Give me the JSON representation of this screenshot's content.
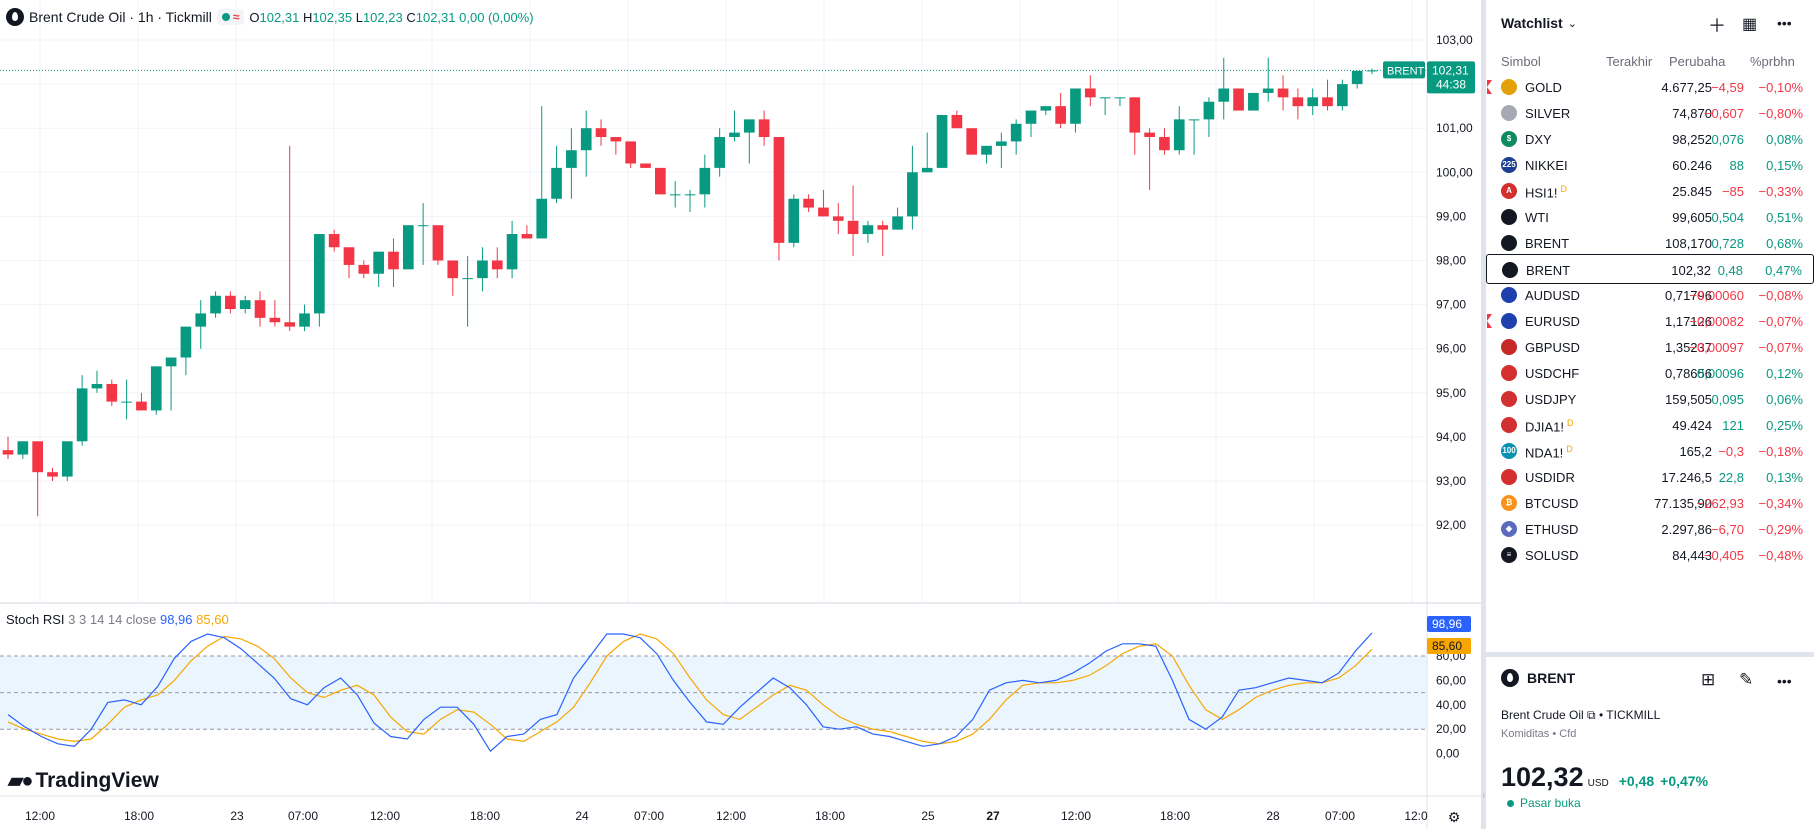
{
  "legend": {
    "title": "Brent Crude Oil · 1h · Tickmill",
    "open_label": "O",
    "open": "102,31",
    "high_label": "H",
    "high": "102,35",
    "low_label": "L",
    "low": "102,23",
    "close_label": "C",
    "close": "102,31",
    "change": "0,00 (0,00%)"
  },
  "price_tag": {
    "symbol": "BRENT",
    "price": "102,31",
    "countdown": "44:38"
  },
  "rsi": {
    "name": "Stoch RSI",
    "params": "3 3 14 14 close",
    "k_value": "98,96",
    "d_value": "85,60",
    "k_color": "#2962ff",
    "d_color": "#f7a600"
  },
  "logo_text": "TradingView",
  "chart_data": {
    "type": "candlestick",
    "price_axis_ticks": [
      "103,00",
      "101,00",
      "100,00",
      "99,00",
      "98,00",
      "97,00",
      "96,00",
      "95,00",
      "94,00",
      "93,00",
      "92,00"
    ],
    "rsi_axis_ticks": [
      "80,00",
      "60,00",
      "40,00",
      "20,00",
      "0,00"
    ],
    "time_axis_ticks": [
      "12:00",
      "18:00",
      "23",
      "07:00",
      "12:00",
      "18:00",
      "24",
      "07:00",
      "12:00",
      "18:00",
      "25",
      "27",
      "12:00",
      "18:00",
      "28",
      "07:00",
      "12:0"
    ],
    "up_color": "#089981",
    "down_color": "#f23645",
    "ohlc": [
      [
        93.7,
        94.0,
        93.5,
        93.6
      ],
      [
        93.6,
        93.9,
        93.5,
        93.9
      ],
      [
        93.9,
        93.9,
        92.2,
        93.2
      ],
      [
        93.2,
        93.3,
        93.0,
        93.1
      ],
      [
        93.1,
        93.9,
        93.0,
        93.9
      ],
      [
        93.9,
        95.4,
        93.8,
        95.1
      ],
      [
        95.1,
        95.5,
        95.0,
        95.2
      ],
      [
        95.2,
        95.3,
        94.7,
        94.8
      ],
      [
        94.8,
        95.3,
        94.4,
        94.8
      ],
      [
        94.8,
        95.0,
        94.6,
        94.6
      ],
      [
        94.6,
        95.6,
        94.5,
        95.6
      ],
      [
        95.6,
        95.8,
        94.6,
        95.8
      ],
      [
        95.8,
        96.5,
        95.4,
        96.5
      ],
      [
        96.5,
        97.1,
        96.0,
        96.8
      ],
      [
        96.8,
        97.3,
        96.7,
        97.2
      ],
      [
        97.2,
        97.3,
        96.8,
        96.9
      ],
      [
        96.9,
        97.2,
        96.8,
        97.1
      ],
      [
        97.1,
        97.3,
        96.5,
        96.7
      ],
      [
        96.7,
        97.1,
        96.5,
        96.6
      ],
      [
        96.6,
        100.6,
        96.4,
        96.5
      ],
      [
        96.5,
        97.0,
        96.4,
        96.8
      ],
      [
        96.8,
        98.6,
        96.5,
        98.6
      ],
      [
        98.6,
        98.7,
        98.2,
        98.3
      ],
      [
        98.3,
        98.3,
        97.6,
        97.9
      ],
      [
        97.9,
        98.0,
        97.6,
        97.7
      ],
      [
        97.7,
        98.2,
        97.4,
        98.2
      ],
      [
        98.2,
        98.5,
        97.4,
        97.8
      ],
      [
        97.8,
        98.8,
        97.8,
        98.8
      ],
      [
        98.8,
        99.3,
        97.9,
        98.8
      ],
      [
        98.8,
        98.8,
        97.9,
        98.0
      ],
      [
        98.0,
        98.0,
        97.2,
        97.6
      ],
      [
        97.6,
        98.1,
        96.5,
        97.6
      ],
      [
        97.6,
        98.3,
        97.3,
        98.0
      ],
      [
        98.0,
        98.3,
        97.6,
        97.8
      ],
      [
        97.8,
        98.9,
        97.6,
        98.6
      ],
      [
        98.6,
        98.8,
        98.5,
        98.5
      ],
      [
        98.5,
        101.5,
        98.5,
        99.4
      ],
      [
        99.4,
        100.6,
        99.3,
        100.1
      ],
      [
        100.1,
        101.0,
        99.4,
        100.5
      ],
      [
        100.5,
        101.4,
        99.9,
        101.0
      ],
      [
        101.0,
        101.2,
        100.6,
        100.8
      ],
      [
        100.8,
        100.8,
        100.4,
        100.7
      ],
      [
        100.7,
        100.7,
        100.1,
        100.2
      ],
      [
        100.2,
        100.2,
        100.1,
        100.1
      ],
      [
        100.1,
        100.1,
        99.5,
        99.5
      ],
      [
        99.5,
        99.8,
        99.2,
        99.5
      ],
      [
        99.5,
        99.6,
        99.1,
        99.5
      ],
      [
        99.5,
        100.4,
        99.2,
        100.1
      ],
      [
        100.1,
        101.0,
        99.9,
        100.8
      ],
      [
        100.8,
        101.4,
        100.7,
        100.9
      ],
      [
        100.9,
        101.2,
        100.2,
        101.2
      ],
      [
        101.2,
        101.4,
        100.6,
        100.8
      ],
      [
        100.8,
        100.8,
        98.0,
        98.4
      ],
      [
        98.4,
        99.5,
        98.3,
        99.4
      ],
      [
        99.4,
        99.5,
        99.1,
        99.2
      ],
      [
        99.2,
        99.6,
        99.0,
        99.0
      ],
      [
        99.0,
        99.3,
        98.6,
        98.9
      ],
      [
        98.9,
        99.7,
        98.1,
        98.6
      ],
      [
        98.6,
        98.9,
        98.4,
        98.8
      ],
      [
        98.8,
        98.9,
        98.1,
        98.7
      ],
      [
        98.7,
        99.2,
        98.7,
        99.0
      ],
      [
        99.0,
        100.6,
        98.7,
        100.0
      ],
      [
        100.0,
        100.9,
        100.0,
        100.1
      ],
      [
        100.1,
        101.2,
        100.1,
        101.3
      ],
      [
        101.3,
        101.4,
        101.0,
        101.0
      ],
      [
        101.0,
        101.0,
        100.5,
        100.4
      ],
      [
        100.4,
        100.6,
        100.2,
        100.6
      ],
      [
        100.6,
        100.9,
        100.1,
        100.7
      ],
      [
        100.7,
        101.2,
        100.4,
        101.1
      ],
      [
        101.1,
        101.3,
        100.8,
        101.4
      ],
      [
        101.4,
        101.5,
        101.3,
        101.5
      ],
      [
        101.5,
        101.8,
        101.0,
        101.1
      ],
      [
        101.1,
        101.9,
        100.9,
        101.9
      ],
      [
        101.9,
        102.2,
        101.5,
        101.7
      ],
      [
        101.7,
        101.7,
        101.3,
        101.7
      ],
      [
        101.7,
        101.7,
        101.5,
        101.7
      ],
      [
        101.7,
        101.7,
        100.4,
        100.9
      ],
      [
        100.9,
        101.0,
        99.6,
        100.8
      ],
      [
        100.8,
        101.0,
        100.4,
        100.5
      ],
      [
        100.5,
        101.5,
        100.4,
        101.2
      ],
      [
        101.2,
        101.2,
        100.4,
        101.2
      ],
      [
        101.2,
        101.7,
        100.8,
        101.6
      ],
      [
        101.6,
        102.6,
        101.2,
        101.9
      ],
      [
        101.9,
        101.9,
        101.4,
        101.4
      ],
      [
        101.4,
        101.8,
        101.4,
        101.8
      ],
      [
        101.8,
        102.6,
        101.6,
        101.9
      ],
      [
        101.9,
        102.2,
        101.4,
        101.7
      ],
      [
        101.7,
        101.9,
        101.2,
        101.5
      ],
      [
        101.5,
        101.9,
        101.3,
        101.7
      ],
      [
        101.7,
        102.1,
        101.4,
        101.5
      ],
      [
        101.5,
        102.1,
        101.4,
        102.0
      ],
      [
        102.0,
        102.3,
        101.9,
        102.3
      ],
      [
        102.31,
        102.35,
        102.23,
        102.31
      ]
    ],
    "stoch_k": [
      32,
      22,
      14,
      8,
      6,
      20,
      42,
      44,
      40,
      55,
      78,
      92,
      98,
      95,
      86,
      74,
      62,
      45,
      40,
      54,
      62,
      48,
      25,
      14,
      12,
      28,
      38,
      38,
      24,
      2,
      14,
      16,
      28,
      32,
      62,
      80,
      98,
      98,
      95,
      82,
      60,
      42,
      26,
      24,
      38,
      50,
      62,
      54,
      40,
      22,
      20,
      22,
      16,
      14,
      10,
      6,
      8,
      14,
      28,
      52,
      58,
      60,
      58,
      60,
      66,
      74,
      84,
      90,
      90,
      88,
      60,
      28,
      20,
      30,
      52,
      54,
      58,
      62,
      60,
      58,
      66,
      84,
      98.96
    ],
    "stoch_d": [
      26,
      20,
      16,
      12,
      10,
      12,
      24,
      38,
      44,
      48,
      60,
      76,
      88,
      96,
      94,
      88,
      78,
      62,
      50,
      46,
      52,
      56,
      48,
      30,
      18,
      16,
      28,
      36,
      34,
      24,
      12,
      10,
      18,
      26,
      38,
      58,
      80,
      92,
      98,
      94,
      82,
      62,
      44,
      32,
      28,
      38,
      48,
      56,
      52,
      40,
      30,
      24,
      20,
      18,
      14,
      10,
      8,
      10,
      16,
      28,
      44,
      56,
      58,
      58,
      60,
      64,
      72,
      82,
      88,
      90,
      80,
      56,
      36,
      28,
      36,
      46,
      52,
      56,
      58,
      58,
      62,
      72,
      85.6
    ]
  },
  "watchlist": {
    "title": "Watchlist",
    "columns": {
      "symbol": "Simbol",
      "last": "Terakhir",
      "change": "Perubaha",
      "pct": "%prbhn"
    },
    "items": [
      {
        "symbol": "GOLD",
        "last": "4.677,25",
        "change": "−4,59",
        "pct": "−0,10%",
        "dir": "dn",
        "icon": "gold-bar-icon",
        "icon_color": "#e3a008",
        "flag": true
      },
      {
        "symbol": "SILVER",
        "last": "74,870",
        "change": "−0,607",
        "pct": "−0,80%",
        "dir": "dn",
        "icon": "silver-bar-icon",
        "icon_color": "#a6a9b4"
      },
      {
        "symbol": "DXY",
        "last": "98,252",
        "change": "0,076",
        "pct": "0,08%",
        "dir": "up",
        "icon": "dollar-icon",
        "icon_color": "#0e8a63",
        "glyph": "$"
      },
      {
        "symbol": "NIKKEI",
        "last": "60.246",
        "change": "88",
        "pct": "0,15%",
        "dir": "up",
        "icon": "nikkei-icon",
        "icon_color": "#1d3f8f",
        "glyph": "225"
      },
      {
        "symbol": "HSI1!",
        "sup": "D",
        "last": "25.845",
        "change": "−85",
        "pct": "−0,33%",
        "dir": "dn",
        "icon": "hsi-icon",
        "icon_color": "#d32f2f",
        "glyph": "A"
      },
      {
        "symbol": "WTI",
        "last": "99,605",
        "change": "0,504",
        "pct": "0,51%",
        "dir": "up",
        "icon": "oil-drop-icon",
        "icon_color": "#131722"
      },
      {
        "symbol": "BRENT",
        "last": "108,170",
        "change": "0,728",
        "pct": "0,68%",
        "dir": "up",
        "icon": "oil-drop-icon",
        "icon_color": "#131722"
      },
      {
        "symbol": "BRENT",
        "last": "102,32",
        "change": "0,48",
        "pct": "0,47%",
        "dir": "up",
        "icon": "oil-drop-icon",
        "icon_color": "#131722",
        "active": true
      },
      {
        "symbol": "AUDUSD",
        "last": "0,71796",
        "change": "−0,00060",
        "pct": "−0,08%",
        "dir": "dn",
        "icon": "aud-flag-icon",
        "icon_color": "#1e40af"
      },
      {
        "symbol": "EURUSD",
        "last": "1,17126",
        "change": "−0,00082",
        "pct": "−0,07%",
        "dir": "dn",
        "icon": "eur-flag-icon",
        "icon_color": "#1e40af",
        "flag": true
      },
      {
        "symbol": "GBPUSD",
        "last": "1,35237",
        "change": "−0,00097",
        "pct": "−0,07%",
        "dir": "dn",
        "icon": "gbp-flag-icon",
        "icon_color": "#c62828"
      },
      {
        "symbol": "USDCHF",
        "last": "0,78656",
        "change": "0,00096",
        "pct": "0,12%",
        "dir": "up",
        "icon": "usd-flag-icon",
        "icon_color": "#d32f2f"
      },
      {
        "symbol": "USDJPY",
        "last": "159,505",
        "change": "0,095",
        "pct": "0,06%",
        "dir": "up",
        "icon": "usd-flag-icon",
        "icon_color": "#d32f2f"
      },
      {
        "symbol": "DJIA1!",
        "sup": "D",
        "last": "49.424",
        "change": "121",
        "pct": "0,25%",
        "dir": "up",
        "icon": "usa-flag-icon",
        "icon_color": "#d32f2f"
      },
      {
        "symbol": "NDA1!",
        "sup": "D",
        "last": "165,2",
        "change": "−0,3",
        "pct": "−0,18%",
        "dir": "dn",
        "icon": "nasdaq-icon",
        "icon_color": "#0891b2",
        "glyph": "100"
      },
      {
        "symbol": "USDIDR",
        "last": "17.246,5",
        "change": "22,8",
        "pct": "0,13%",
        "dir": "up",
        "icon": "usd-flag-icon",
        "icon_color": "#d32f2f"
      },
      {
        "symbol": "BTCUSD",
        "last": "77.135,90",
        "change": "−262,93",
        "pct": "−0,34%",
        "dir": "dn",
        "icon": "bitcoin-icon",
        "icon_color": "#f7931a",
        "glyph": "₿"
      },
      {
        "symbol": "ETHUSD",
        "last": "2.297,86",
        "change": "−6,70",
        "pct": "−0,29%",
        "dir": "dn",
        "icon": "ethereum-icon",
        "icon_color": "#5c6bc0",
        "glyph": "◆"
      },
      {
        "symbol": "SOLUSD",
        "last": "84,443",
        "change": "−0,405",
        "pct": "−0,48%",
        "dir": "dn",
        "icon": "solana-icon",
        "icon_color": "#131722",
        "glyph": "≡"
      }
    ]
  },
  "details": {
    "symbol": "BRENT",
    "name": "Brent Crude Oil",
    "exchange": "TICKMILL",
    "category": "Komiditas",
    "type": "Cfd",
    "price": "102,32",
    "currency": "USD",
    "change": "+0,48",
    "change_pct": "+0,47%",
    "status": "Pasar buka"
  }
}
